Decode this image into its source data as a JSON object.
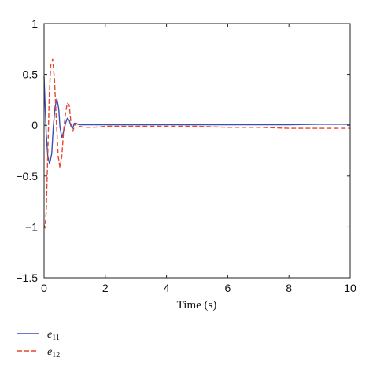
{
  "chart_data": {
    "type": "line",
    "title": "",
    "xlabel": "Time (s)",
    "ylabel": "",
    "xlim": [
      0,
      10
    ],
    "ylim": [
      -1.5,
      1
    ],
    "xticks": [
      0,
      2,
      4,
      6,
      8,
      10
    ],
    "yticks": [
      -1.5,
      -1,
      -0.5,
      0,
      0.5,
      1
    ],
    "xtick_labels": [
      "0",
      "2",
      "4",
      "6",
      "8",
      "10"
    ],
    "ytick_labels": [
      "−1.5",
      "−1",
      "−0.5",
      "0",
      "0.5",
      "1"
    ],
    "grid": false,
    "legend_position": "below-left",
    "series": [
      {
        "name": "e11",
        "legend_base": "e",
        "legend_sub": "11",
        "color": "#3b4fb0",
        "dash": "solid",
        "x": [
          0,
          0.03,
          0.07,
          0.12,
          0.18,
          0.25,
          0.3,
          0.36,
          0.42,
          0.48,
          0.52,
          0.58,
          0.64,
          0.7,
          0.76,
          0.82,
          0.88,
          0.93,
          0.99,
          1.05,
          1.1,
          1.2,
          1.4,
          2,
          3,
          4,
          5,
          6,
          7,
          8,
          9,
          10
        ],
        "y": [
          0.48,
          0.22,
          -0.08,
          -0.3,
          -0.38,
          -0.28,
          -0.02,
          0.18,
          0.26,
          0.16,
          -0.02,
          -0.12,
          -0.06,
          0.02,
          0.07,
          0.05,
          -0.01,
          -0.03,
          0.02,
          0.02,
          0.01,
          0.005,
          0.005,
          0.005,
          0.005,
          0.005,
          0.005,
          0.005,
          0.005,
          0.005,
          0.01,
          0.01
        ]
      },
      {
        "name": "e12",
        "legend_base": "e",
        "legend_sub": "12",
        "color": "#e8452a",
        "dash": "dashed",
        "x": [
          0,
          0.03,
          0.07,
          0.12,
          0.17,
          0.22,
          0.28,
          0.34,
          0.4,
          0.46,
          0.52,
          0.58,
          0.64,
          0.7,
          0.76,
          0.82,
          0.88,
          0.94,
          1,
          1.06,
          1.15,
          1.3,
          1.6,
          2,
          3,
          4,
          5,
          6,
          7,
          8,
          9,
          10
        ],
        "y": [
          -0.98,
          -1.01,
          -0.85,
          -0.3,
          0.3,
          0.6,
          0.65,
          0.45,
          0.05,
          -0.3,
          -0.42,
          -0.3,
          -0.05,
          0.12,
          0.22,
          0.2,
          0.02,
          -0.06,
          0.0,
          0.02,
          -0.01,
          -0.02,
          -0.02,
          -0.01,
          -0.01,
          -0.01,
          -0.01,
          -0.02,
          -0.02,
          -0.03,
          -0.03,
          -0.03
        ]
      }
    ]
  }
}
